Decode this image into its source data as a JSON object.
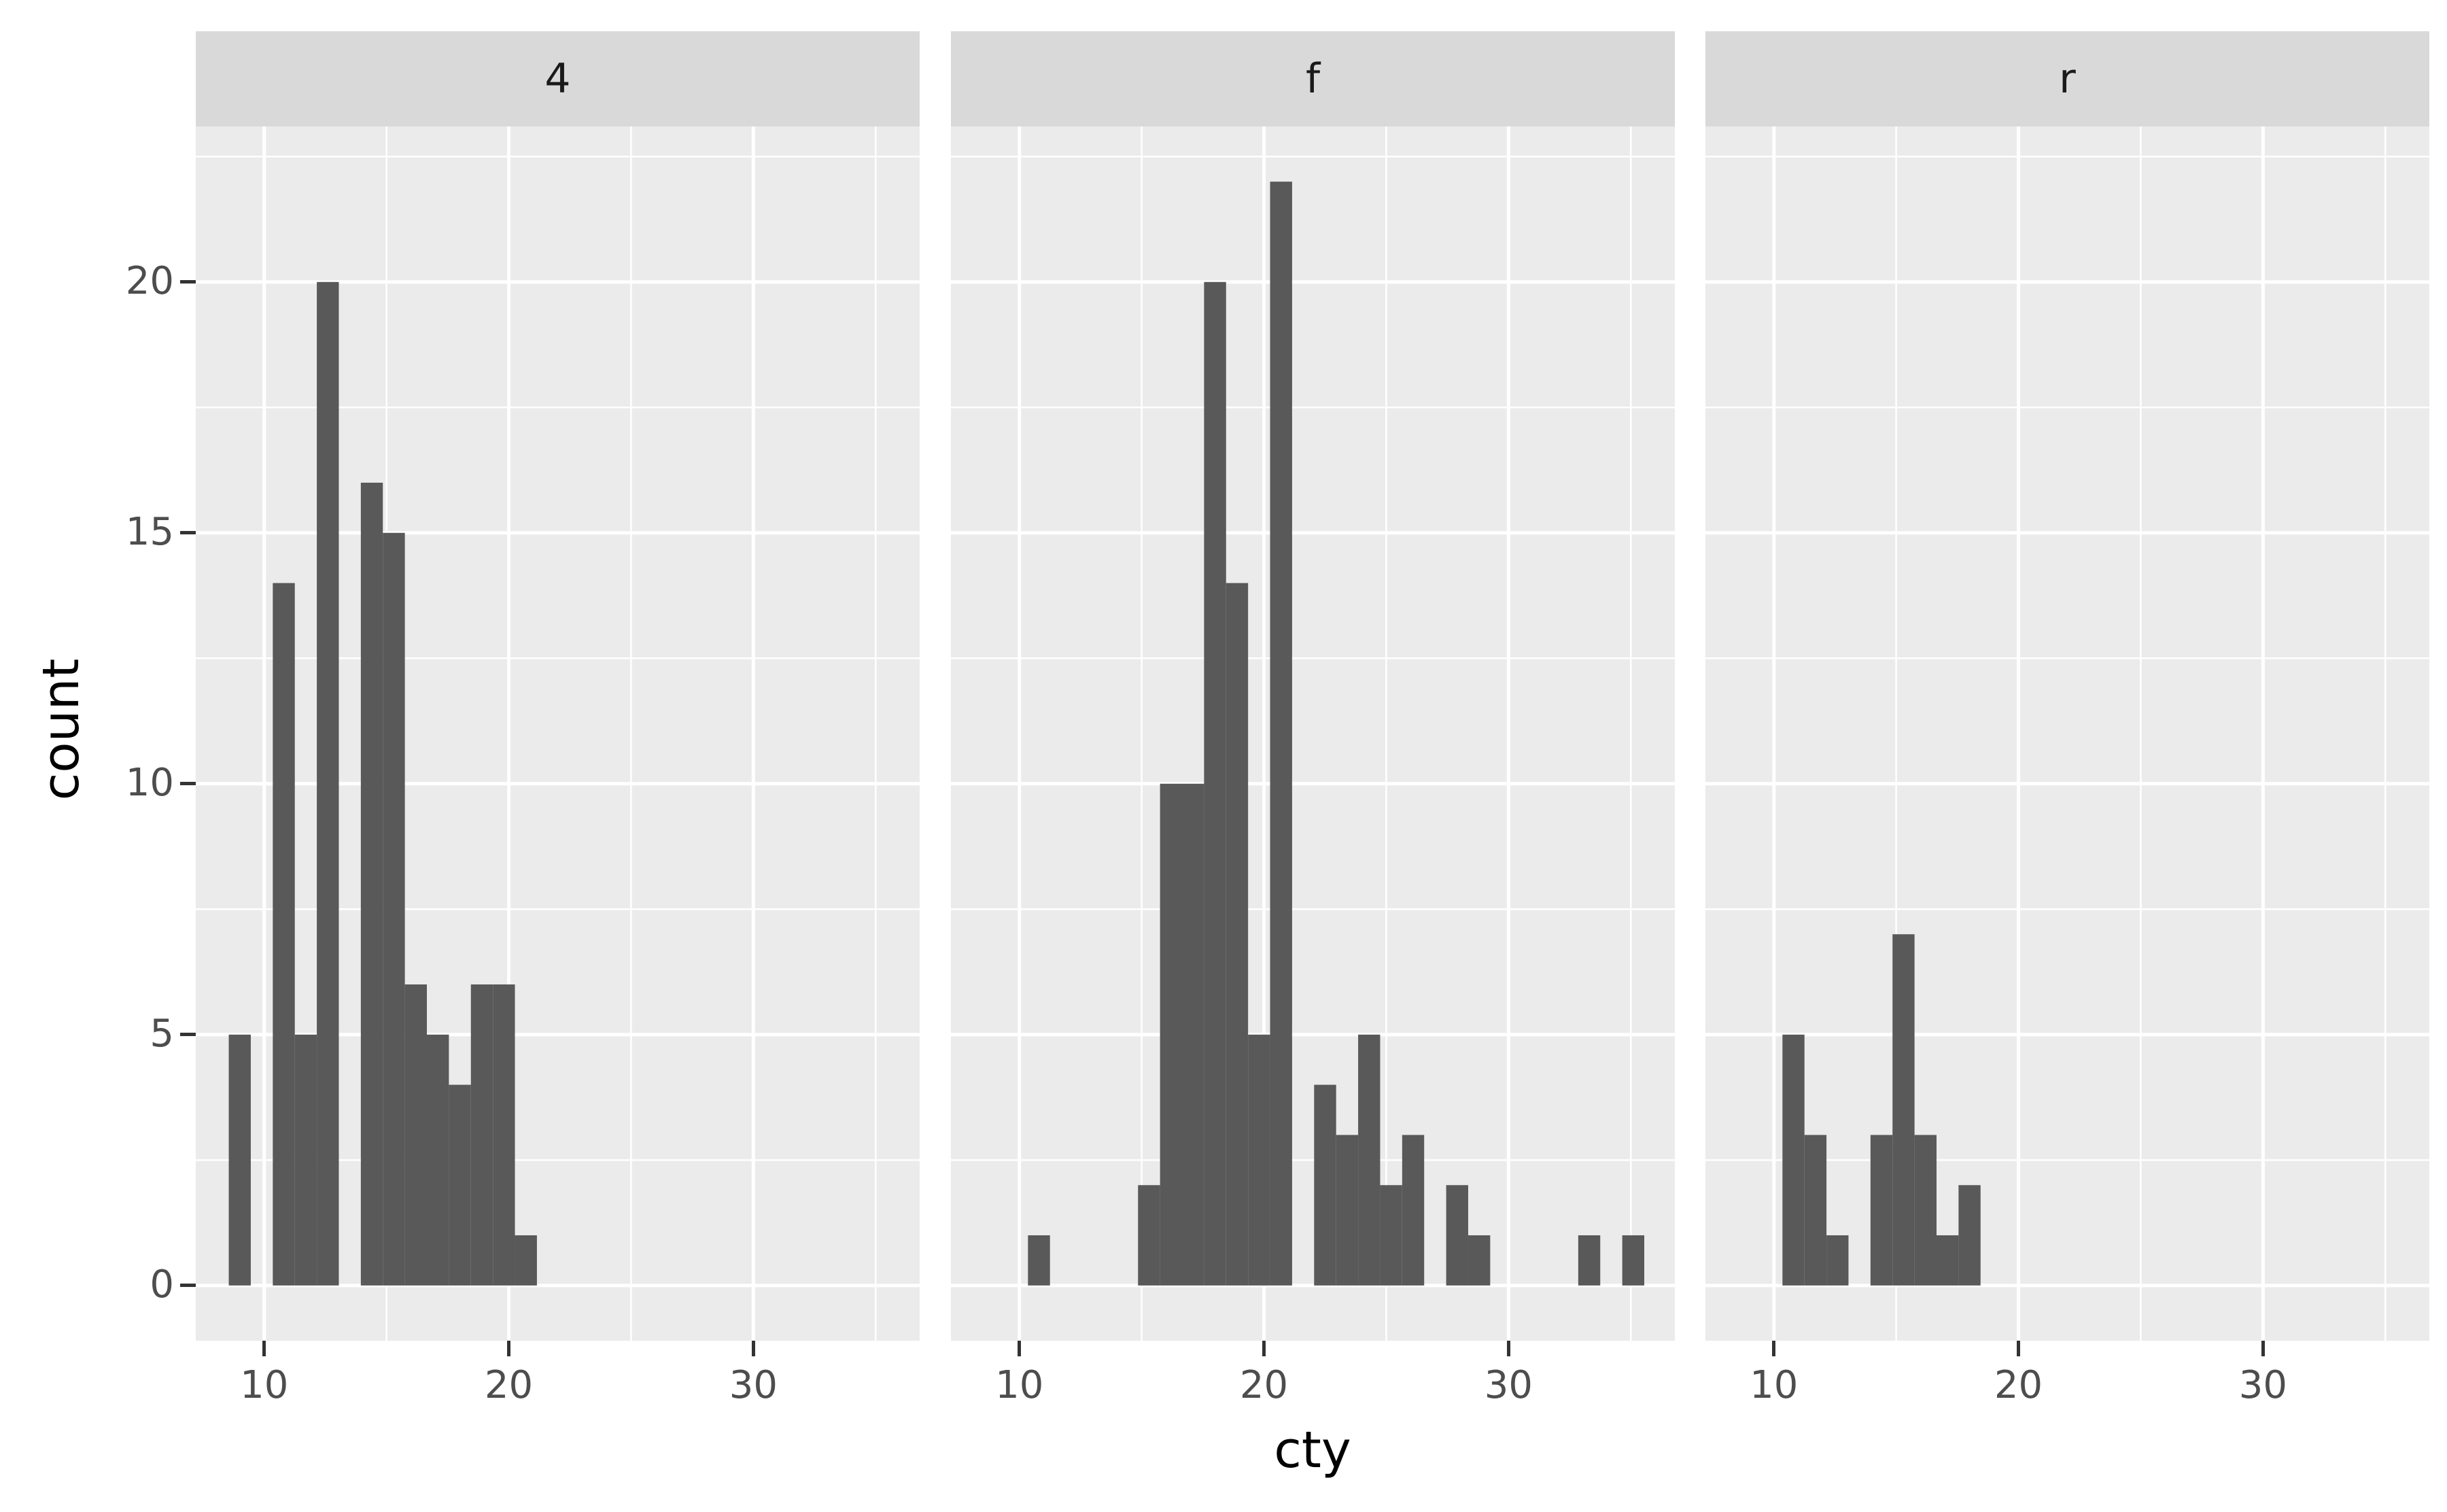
{
  "chart_data": {
    "type": "bar",
    "subtype": "faceted histogram",
    "xlabel": "cty",
    "ylabel": "count",
    "xlim": [
      7.2,
      36.8
    ],
    "ylim": [
      -1.1,
      23.1
    ],
    "x_ticks": [
      10,
      20,
      30
    ],
    "y_ticks": [
      0,
      5,
      10,
      15,
      20
    ],
    "grid": true,
    "facets": [
      {
        "label": "4",
        "bins": [
          {
            "x": 9.0,
            "count": 5
          },
          {
            "x": 10.8,
            "count": 14
          },
          {
            "x": 11.7,
            "count": 5
          },
          {
            "x": 12.6,
            "count": 20
          },
          {
            "x": 14.4,
            "count": 16
          },
          {
            "x": 15.3,
            "count": 15
          },
          {
            "x": 16.2,
            "count": 6
          },
          {
            "x": 17.1,
            "count": 5
          },
          {
            "x": 18.0,
            "count": 4
          },
          {
            "x": 18.9,
            "count": 6
          },
          {
            "x": 19.8,
            "count": 6
          },
          {
            "x": 20.7,
            "count": 1
          }
        ]
      },
      {
        "label": "f",
        "bins": [
          {
            "x": 10.8,
            "count": 1
          },
          {
            "x": 15.3,
            "count": 2
          },
          {
            "x": 16.2,
            "count": 10
          },
          {
            "x": 17.1,
            "count": 10
          },
          {
            "x": 18.0,
            "count": 20
          },
          {
            "x": 18.9,
            "count": 14
          },
          {
            "x": 19.8,
            "count": 5
          },
          {
            "x": 20.7,
            "count": 22
          },
          {
            "x": 22.5,
            "count": 4
          },
          {
            "x": 23.4,
            "count": 3
          },
          {
            "x": 24.3,
            "count": 5
          },
          {
            "x": 25.2,
            "count": 2
          },
          {
            "x": 26.1,
            "count": 3
          },
          {
            "x": 27.9,
            "count": 2
          },
          {
            "x": 28.8,
            "count": 1
          },
          {
            "x": 33.3,
            "count": 1
          },
          {
            "x": 35.1,
            "count": 1
          }
        ]
      },
      {
        "label": "r",
        "bins": [
          {
            "x": 10.8,
            "count": 5
          },
          {
            "x": 11.7,
            "count": 3
          },
          {
            "x": 12.6,
            "count": 1
          },
          {
            "x": 14.4,
            "count": 3
          },
          {
            "x": 15.3,
            "count": 7
          },
          {
            "x": 16.2,
            "count": 3
          },
          {
            "x": 17.1,
            "count": 1
          },
          {
            "x": 18.0,
            "count": 2
          }
        ]
      }
    ],
    "bin_width": 0.9,
    "bar_color": "#595959",
    "panel_background": "#ebebeb",
    "strip_background": "#d9d9d9"
  },
  "axes": {
    "x_title": "cty",
    "y_title": "count",
    "y_tick_labels": [
      "0",
      "5",
      "10",
      "15",
      "20"
    ],
    "x_tick_labels": [
      "10",
      "20",
      "30"
    ]
  },
  "facets": {
    "labels": [
      "4",
      "f",
      "r"
    ]
  }
}
